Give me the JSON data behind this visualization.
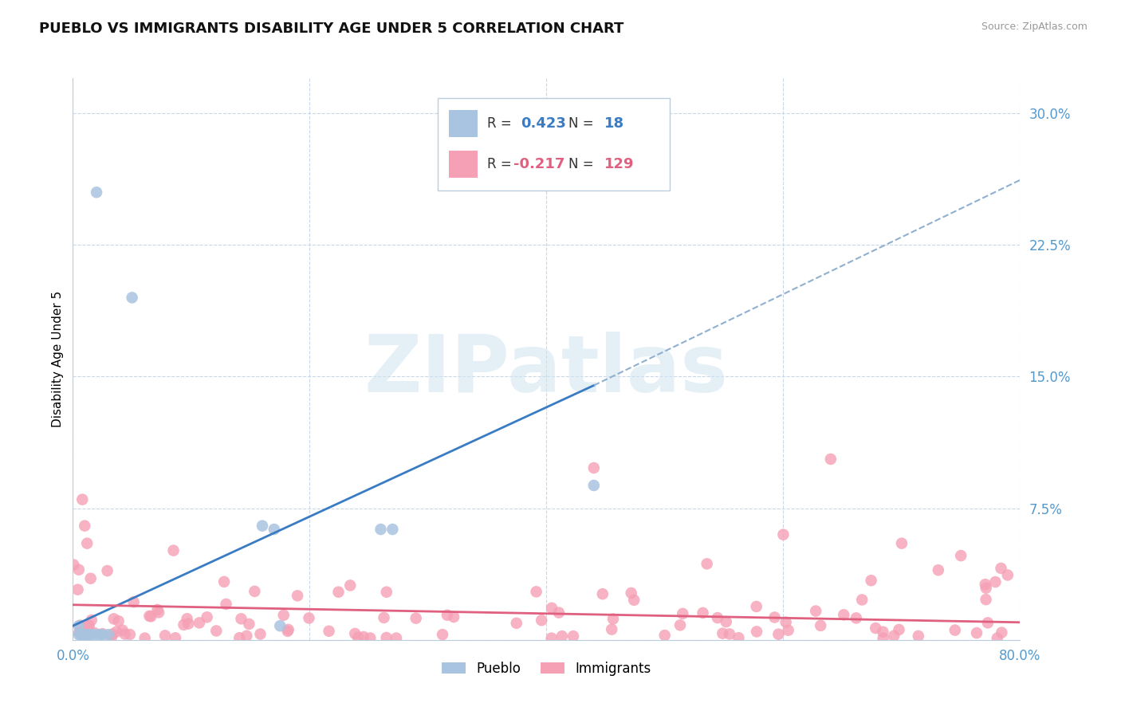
{
  "title": "PUEBLO VS IMMIGRANTS DISABILITY AGE UNDER 5 CORRELATION CHART",
  "source": "Source: ZipAtlas.com",
  "ylabel": "Disability Age Under 5",
  "xlim": [
    0.0,
    0.8
  ],
  "ylim": [
    0.0,
    0.32
  ],
  "background_color": "#ffffff",
  "grid_color": "#c8d8e8",
  "pueblo_color": "#a8c4e0",
  "immigrants_color": "#f5a0b5",
  "pueblo_line_color": "#3a7cc4",
  "immigrants_line_color": "#e06080",
  "dashed_line_color": "#90b0d0",
  "pueblo_R": 0.423,
  "pueblo_N": 18,
  "immigrants_R": -0.217,
  "immigrants_N": 129,
  "title_fontsize": 13,
  "axis_label_fontsize": 11,
  "tick_fontsize": 12,
  "watermark": "ZIPatlas",
  "pueblo_x": [
    0.005,
    0.005,
    0.007,
    0.01,
    0.012,
    0.015,
    0.018,
    0.02,
    0.022,
    0.025,
    0.03,
    0.05,
    0.16,
    0.17,
    0.175,
    0.26,
    0.27,
    0.44
  ],
  "pueblo_y": [
    0.003,
    0.008,
    0.003,
    0.003,
    0.003,
    0.003,
    0.003,
    0.255,
    0.003,
    0.003,
    0.003,
    0.195,
    0.065,
    0.063,
    0.008,
    0.063,
    0.063,
    0.088
  ],
  "pueblo_line_x0": 0.0,
  "pueblo_line_y0": 0.008,
  "pueblo_line_x1": 0.44,
  "pueblo_line_y1": 0.145,
  "dashed_line_x0": 0.44,
  "dashed_line_y0": 0.145,
  "dashed_line_x1": 0.8,
  "dashed_line_y1": 0.262,
  "immigrants_line_x0": 0.0,
  "immigrants_line_y0": 0.02,
  "immigrants_line_x1": 0.8,
  "immigrants_line_y1": 0.01
}
